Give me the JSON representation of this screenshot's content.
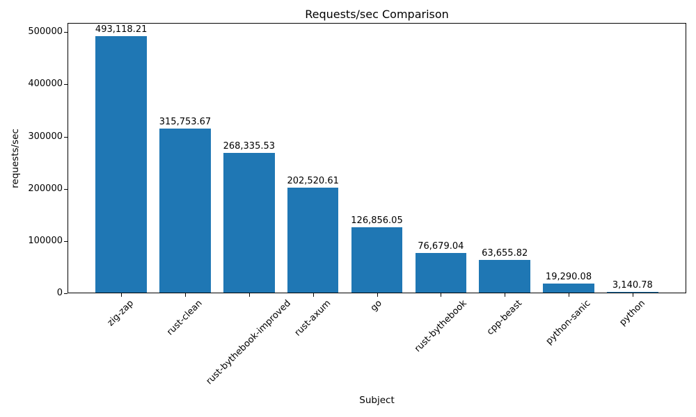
{
  "chart_data": {
    "type": "bar",
    "title": "Requests/sec Comparison",
    "xlabel": "Subject",
    "ylabel": "requests/sec",
    "categories": [
      "zig-zap",
      "rust-clean",
      "rust-bythebook-improved",
      "rust-axum",
      "go",
      "rust-bythebook",
      "cpp-beast",
      "python-sanic",
      "python"
    ],
    "values": [
      493118.21,
      315753.67,
      268335.53,
      202520.61,
      126856.05,
      76679.04,
      63655.82,
      19290.08,
      3140.78
    ],
    "value_labels": [
      "493,118.21",
      "315,753.67",
      "268,335.53",
      "202,520.61",
      "126,856.05",
      "76,679.04",
      "63,655.82",
      "19,290.08",
      "3,140.78"
    ],
    "yticks": [
      0,
      100000,
      200000,
      300000,
      400000,
      500000
    ],
    "ytick_labels": [
      "0",
      "100000",
      "200000",
      "300000",
      "400000",
      "500000"
    ],
    "ylim": [
      0,
      517774
    ],
    "bar_color": "#1f77b4",
    "axis_color": "#000000",
    "text_color": "#000000",
    "grid": false,
    "legend": null,
    "bar_width_fraction": 0.8,
    "x_margin_units": 0.84,
    "xtick_rotation_deg": 45
  }
}
